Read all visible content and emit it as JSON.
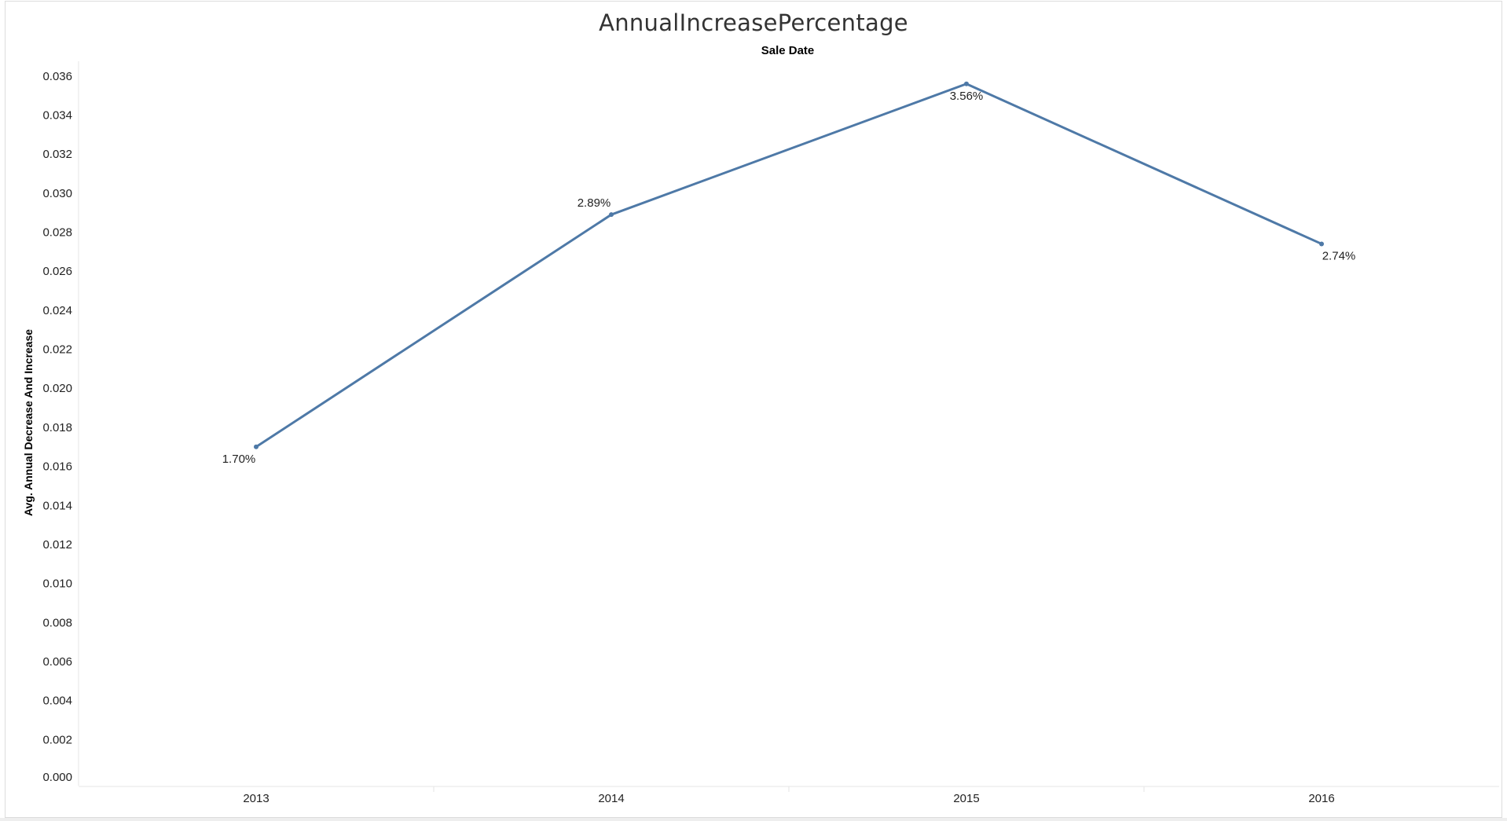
{
  "chart_data": {
    "type": "line",
    "title": "AnnualIncreasePercentage",
    "column_header": "Sale Date",
    "xlabel": "",
    "ylabel": "Avg. Annual Decrease And Increase",
    "categories": [
      "2013",
      "2014",
      "2015",
      "2016"
    ],
    "series": [
      {
        "values": [
          0.017,
          0.0289,
          0.0356,
          0.0274
        ],
        "labels": [
          "1.70%",
          "2.89%",
          "3.56%",
          "2.74%"
        ]
      }
    ],
    "ylim": [
      0,
      0.037
    ],
    "yticks": [
      "0.000",
      "0.002",
      "0.004",
      "0.006",
      "0.008",
      "0.010",
      "0.012",
      "0.014",
      "0.016",
      "0.018",
      "0.020",
      "0.022",
      "0.024",
      "0.026",
      "0.028",
      "0.030",
      "0.032",
      "0.034",
      "0.036"
    ],
    "grid": false,
    "line_color": "#4e79a7"
  }
}
